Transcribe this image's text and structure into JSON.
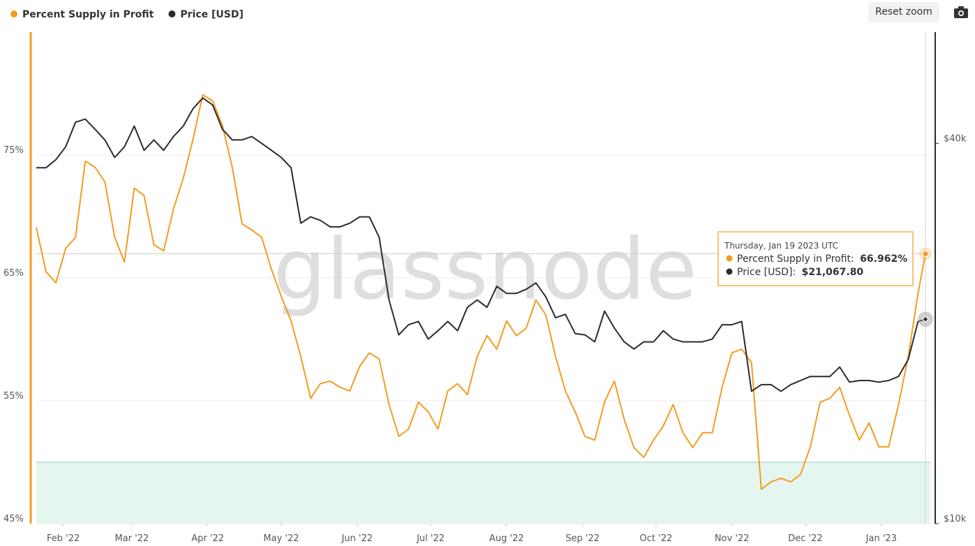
{
  "chart_data": {
    "type": "line",
    "x": [
      "2022-01-21",
      "2022-01-25",
      "2022-01-29",
      "2022-02-02",
      "2022-02-06",
      "2022-02-10",
      "2022-02-14",
      "2022-02-18",
      "2022-02-22",
      "2022-02-26",
      "2022-03-02",
      "2022-03-06",
      "2022-03-10",
      "2022-03-14",
      "2022-03-18",
      "2022-03-22",
      "2022-03-26",
      "2022-03-30",
      "2022-04-03",
      "2022-04-07",
      "2022-04-11",
      "2022-04-15",
      "2022-04-19",
      "2022-04-23",
      "2022-04-27",
      "2022-05-01",
      "2022-05-05",
      "2022-05-09",
      "2022-05-13",
      "2022-05-17",
      "2022-05-21",
      "2022-05-25",
      "2022-05-29",
      "2022-06-02",
      "2022-06-06",
      "2022-06-10",
      "2022-06-14",
      "2022-06-18",
      "2022-06-22",
      "2022-06-26",
      "2022-06-30",
      "2022-07-04",
      "2022-07-08",
      "2022-07-12",
      "2022-07-16",
      "2022-07-20",
      "2022-07-24",
      "2022-07-28",
      "2022-08-01",
      "2022-08-05",
      "2022-08-09",
      "2022-08-13",
      "2022-08-17",
      "2022-08-21",
      "2022-08-25",
      "2022-08-29",
      "2022-09-02",
      "2022-09-06",
      "2022-09-10",
      "2022-09-14",
      "2022-09-18",
      "2022-09-22",
      "2022-09-26",
      "2022-09-30",
      "2022-10-04",
      "2022-10-08",
      "2022-10-12",
      "2022-10-16",
      "2022-10-20",
      "2022-10-24",
      "2022-10-28",
      "2022-11-01",
      "2022-11-05",
      "2022-11-09",
      "2022-11-13",
      "2022-11-17",
      "2022-11-21",
      "2022-11-25",
      "2022-11-29",
      "2022-12-03",
      "2022-12-07",
      "2022-12-11",
      "2022-12-15",
      "2022-12-19",
      "2022-12-23",
      "2022-12-27",
      "2022-12-31",
      "2023-01-04",
      "2023-01-08",
      "2023-01-12",
      "2023-01-16",
      "2023-01-19"
    ],
    "series": [
      {
        "name": "Percent Supply in Profit",
        "color": "#f39c1f",
        "axis": "y",
        "values": [
          69.1,
          65.5,
          64.6,
          67.4,
          68.3,
          74.5,
          74.0,
          72.8,
          68.3,
          66.3,
          72.3,
          71.7,
          67.7,
          67.2,
          70.6,
          73.1,
          76.3,
          79.9,
          79.4,
          77.4,
          74.0,
          69.4,
          68.9,
          68.3,
          65.7,
          63.5,
          61.5,
          58.6,
          55.2,
          56.4,
          56.6,
          56.1,
          55.8,
          57.8,
          58.9,
          58.4,
          54.7,
          52.1,
          52.7,
          54.9,
          54.1,
          52.7,
          55.8,
          56.4,
          55.5,
          58.6,
          60.3,
          59.2,
          61.5,
          60.3,
          60.9,
          63.2,
          62.0,
          58.6,
          55.8,
          54.1,
          52.1,
          51.8,
          54.9,
          56.6,
          53.5,
          51.2,
          50.4,
          51.8,
          52.95,
          54.7,
          52.4,
          51.2,
          52.4,
          52.4,
          56.1,
          58.9,
          59.2,
          58.1,
          47.8,
          48.4,
          48.7,
          48.4,
          49.0,
          51.25,
          54.9,
          55.2,
          56.1,
          53.8,
          51.8,
          53.2,
          51.25,
          51.25,
          54.7,
          58.6,
          63.75,
          66.962
        ]
      },
      {
        "name": "Price [USD]",
        "color": "#2b2b2b",
        "axis": "y2",
        "values": [
          36600,
          36600,
          37700,
          39500,
          43200,
          43700,
          42100,
          40500,
          38000,
          39500,
          42600,
          39000,
          40500,
          39000,
          41000,
          42600,
          45400,
          47200,
          46000,
          42100,
          40500,
          40500,
          41000,
          40000,
          39000,
          38000,
          36600,
          29900,
          30600,
          30200,
          29500,
          29500,
          29900,
          30600,
          30600,
          28400,
          22600,
          19900,
          20650,
          20900,
          19600,
          20200,
          20900,
          20200,
          22000,
          22600,
          22000,
          23750,
          23150,
          23150,
          23500,
          24050,
          22860,
          21180,
          21450,
          20000,
          19900,
          19400,
          21700,
          20400,
          19400,
          18900,
          19400,
          19400,
          20200,
          19600,
          19400,
          19400,
          19400,
          19600,
          20650,
          20650,
          20900,
          16200,
          16600,
          16600,
          16200,
          16600,
          16850,
          17100,
          17100,
          17100,
          17700,
          16750,
          16850,
          16850,
          16750,
          16850,
          17100,
          18200,
          20900,
          21067.8
        ]
      }
    ],
    "xlim": [
      "2022-01-21",
      "2023-01-23"
    ],
    "xticks": [
      {
        "value": "2022-02-01",
        "label": "Feb '22"
      },
      {
        "value": "2022-03-01",
        "label": "Mar '22"
      },
      {
        "value": "2022-04-01",
        "label": "Apr '22"
      },
      {
        "value": "2022-05-01",
        "label": "May '22"
      },
      {
        "value": "2022-06-01",
        "label": "Jun '22"
      },
      {
        "value": "2022-07-01",
        "label": "Jul '22"
      },
      {
        "value": "2022-08-01",
        "label": "Aug '22"
      },
      {
        "value": "2022-09-01",
        "label": "Sep '22"
      },
      {
        "value": "2022-10-01",
        "label": "Oct '22"
      },
      {
        "value": "2022-11-01",
        "label": "Nov '22"
      },
      {
        "value": "2022-12-01",
        "label": "Dec '22"
      },
      {
        "value": "2023-01-01",
        "label": "Jan '23"
      }
    ],
    "ylim": [
      45,
      85
    ],
    "yticks": [
      {
        "value": 45,
        "label": "45%"
      },
      {
        "value": 55,
        "label": "55%"
      },
      {
        "value": 65,
        "label": "65%"
      },
      {
        "value": 75,
        "label": "75%"
      }
    ],
    "y2lim": [
      10000,
      60000
    ],
    "y2scale": "log",
    "y2ticks": [
      {
        "value": 10000,
        "label": "$10k"
      },
      {
        "value": 40000,
        "label": "$40k"
      }
    ],
    "grid": true,
    "threshold": 50,
    "threshold_color": "#e5f6ee",
    "watermark": "glassnode",
    "tooltip": {
      "title": "Thursday, Jan 19 2023 UTC",
      "rows": [
        {
          "label": "Percent Supply in Profit: ",
          "value": "66.962%"
        },
        {
          "label": "Price [USD]: ",
          "value": "$21,067.80"
        }
      ]
    }
  },
  "reset_zoom": "Reset zoom"
}
